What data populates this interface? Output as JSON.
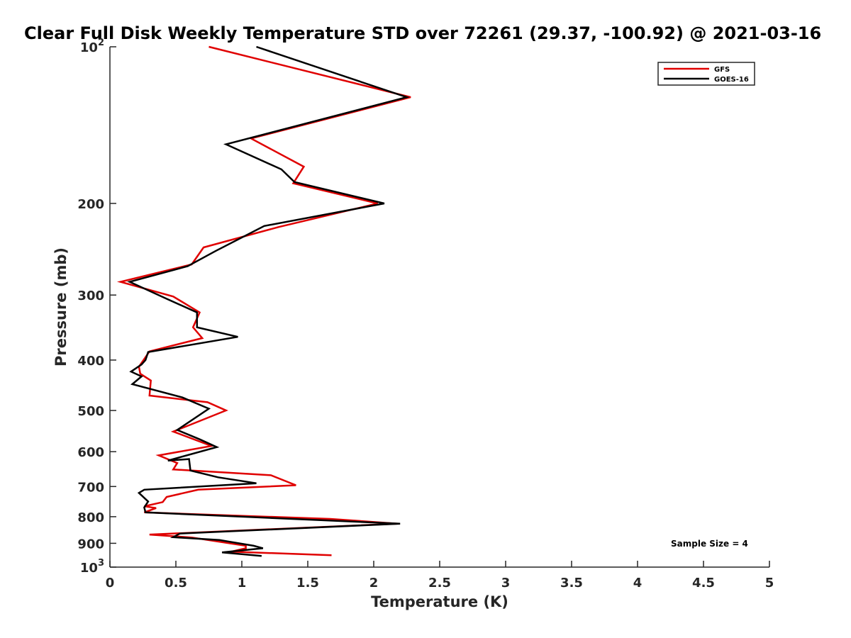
{
  "chart_data": {
    "type": "line",
    "title": "Clear Full Disk Weekly Temperature STD over 72261 (29.37, -100.92) @ 2021-03-16",
    "xlabel": "Temperature (K)",
    "ylabel": "Pressure (mb)",
    "xlim": [
      0,
      5
    ],
    "ylim": [
      100,
      1000
    ],
    "y_scale": "log",
    "y_reversed": true,
    "grid": false,
    "x_ticks": [
      "0",
      "0.5",
      "1",
      "1.5",
      "2",
      "2.5",
      "3",
      "3.5",
      "4",
      "4.5",
      "5"
    ],
    "x_tick_values": [
      0,
      0.5,
      1,
      1.5,
      2,
      2.5,
      3,
      3.5,
      4,
      4.5,
      5
    ],
    "y_ticks": [
      {
        "value": 100,
        "base": "10",
        "exp": "2",
        "label": ""
      },
      {
        "value": 200,
        "label": "200"
      },
      {
        "value": 300,
        "label": "300"
      },
      {
        "value": 400,
        "label": "400"
      },
      {
        "value": 500,
        "label": "500"
      },
      {
        "value": 600,
        "label": "600"
      },
      {
        "value": 700,
        "label": "700"
      },
      {
        "value": 800,
        "label": "800"
      },
      {
        "value": 900,
        "label": "900"
      },
      {
        "value": 1000,
        "base": "10",
        "exp": "3",
        "label": ""
      }
    ],
    "legend_position": "top-right",
    "annotation": "Sample Size = 4",
    "series": [
      {
        "name": "GFS",
        "color": "#e00000",
        "points": [
          [
            0.75,
            100
          ],
          [
            2.28,
            125
          ],
          [
            1.07,
            150
          ],
          [
            1.47,
            170
          ],
          [
            1.39,
            183
          ],
          [
            2.03,
            200
          ],
          [
            1.28,
            222
          ],
          [
            0.71,
            243
          ],
          [
            0.62,
            262
          ],
          [
            0.08,
            283
          ],
          [
            0.48,
            302
          ],
          [
            0.68,
            324
          ],
          [
            0.63,
            346
          ],
          [
            0.7,
            363
          ],
          [
            0.3,
            385
          ],
          [
            0.22,
            412
          ],
          [
            0.23,
            425
          ],
          [
            0.31,
            438
          ],
          [
            0.3,
            468
          ],
          [
            0.74,
            482
          ],
          [
            0.88,
            500
          ],
          [
            0.48,
            549
          ],
          [
            0.77,
            585
          ],
          [
            0.37,
            610
          ],
          [
            0.51,
            631
          ],
          [
            0.48,
            649
          ],
          [
            1.22,
            666
          ],
          [
            1.41,
            696
          ],
          [
            0.67,
            710
          ],
          [
            0.43,
            733
          ],
          [
            0.4,
            750
          ],
          [
            0.26,
            764
          ],
          [
            0.35,
            770
          ],
          [
            0.26,
            785
          ],
          [
            1.67,
            808
          ],
          [
            2.18,
            825
          ],
          [
            0.3,
            866
          ],
          [
            0.62,
            877
          ],
          [
            1.03,
            910
          ],
          [
            1.03,
            920
          ],
          [
            0.92,
            934
          ],
          [
            1.68,
            949
          ]
        ]
      },
      {
        "name": "GOES-16",
        "color": "#000000",
        "points": [
          [
            1.11,
            100
          ],
          [
            2.25,
            125
          ],
          [
            0.88,
            154
          ],
          [
            1.3,
            172
          ],
          [
            1.4,
            182
          ],
          [
            2.08,
            200
          ],
          [
            1.17,
            221
          ],
          [
            0.8,
            247
          ],
          [
            0.59,
            264
          ],
          [
            0.15,
            283
          ],
          [
            0.43,
            305
          ],
          [
            0.66,
            324
          ],
          [
            0.66,
            346
          ],
          [
            0.97,
            361
          ],
          [
            0.29,
            386
          ],
          [
            0.27,
            400
          ],
          [
            0.24,
            408
          ],
          [
            0.16,
            421
          ],
          [
            0.24,
            430
          ],
          [
            0.17,
            445
          ],
          [
            0.55,
            472
          ],
          [
            0.75,
            496
          ],
          [
            0.51,
            545
          ],
          [
            0.68,
            568
          ],
          [
            0.81,
            588
          ],
          [
            0.44,
            624
          ],
          [
            0.6,
            620
          ],
          [
            0.61,
            652
          ],
          [
            0.82,
            672
          ],
          [
            1.11,
            690
          ],
          [
            0.26,
            710
          ],
          [
            0.22,
            720
          ],
          [
            0.29,
            748
          ],
          [
            0.26,
            768
          ],
          [
            0.27,
            785
          ],
          [
            2.2,
            825
          ],
          [
            0.53,
            862
          ],
          [
            0.48,
            876
          ],
          [
            0.83,
            887
          ],
          [
            1.09,
            910
          ],
          [
            1.16,
            920
          ],
          [
            0.85,
            937
          ],
          [
            1.15,
            952
          ]
        ]
      }
    ]
  }
}
